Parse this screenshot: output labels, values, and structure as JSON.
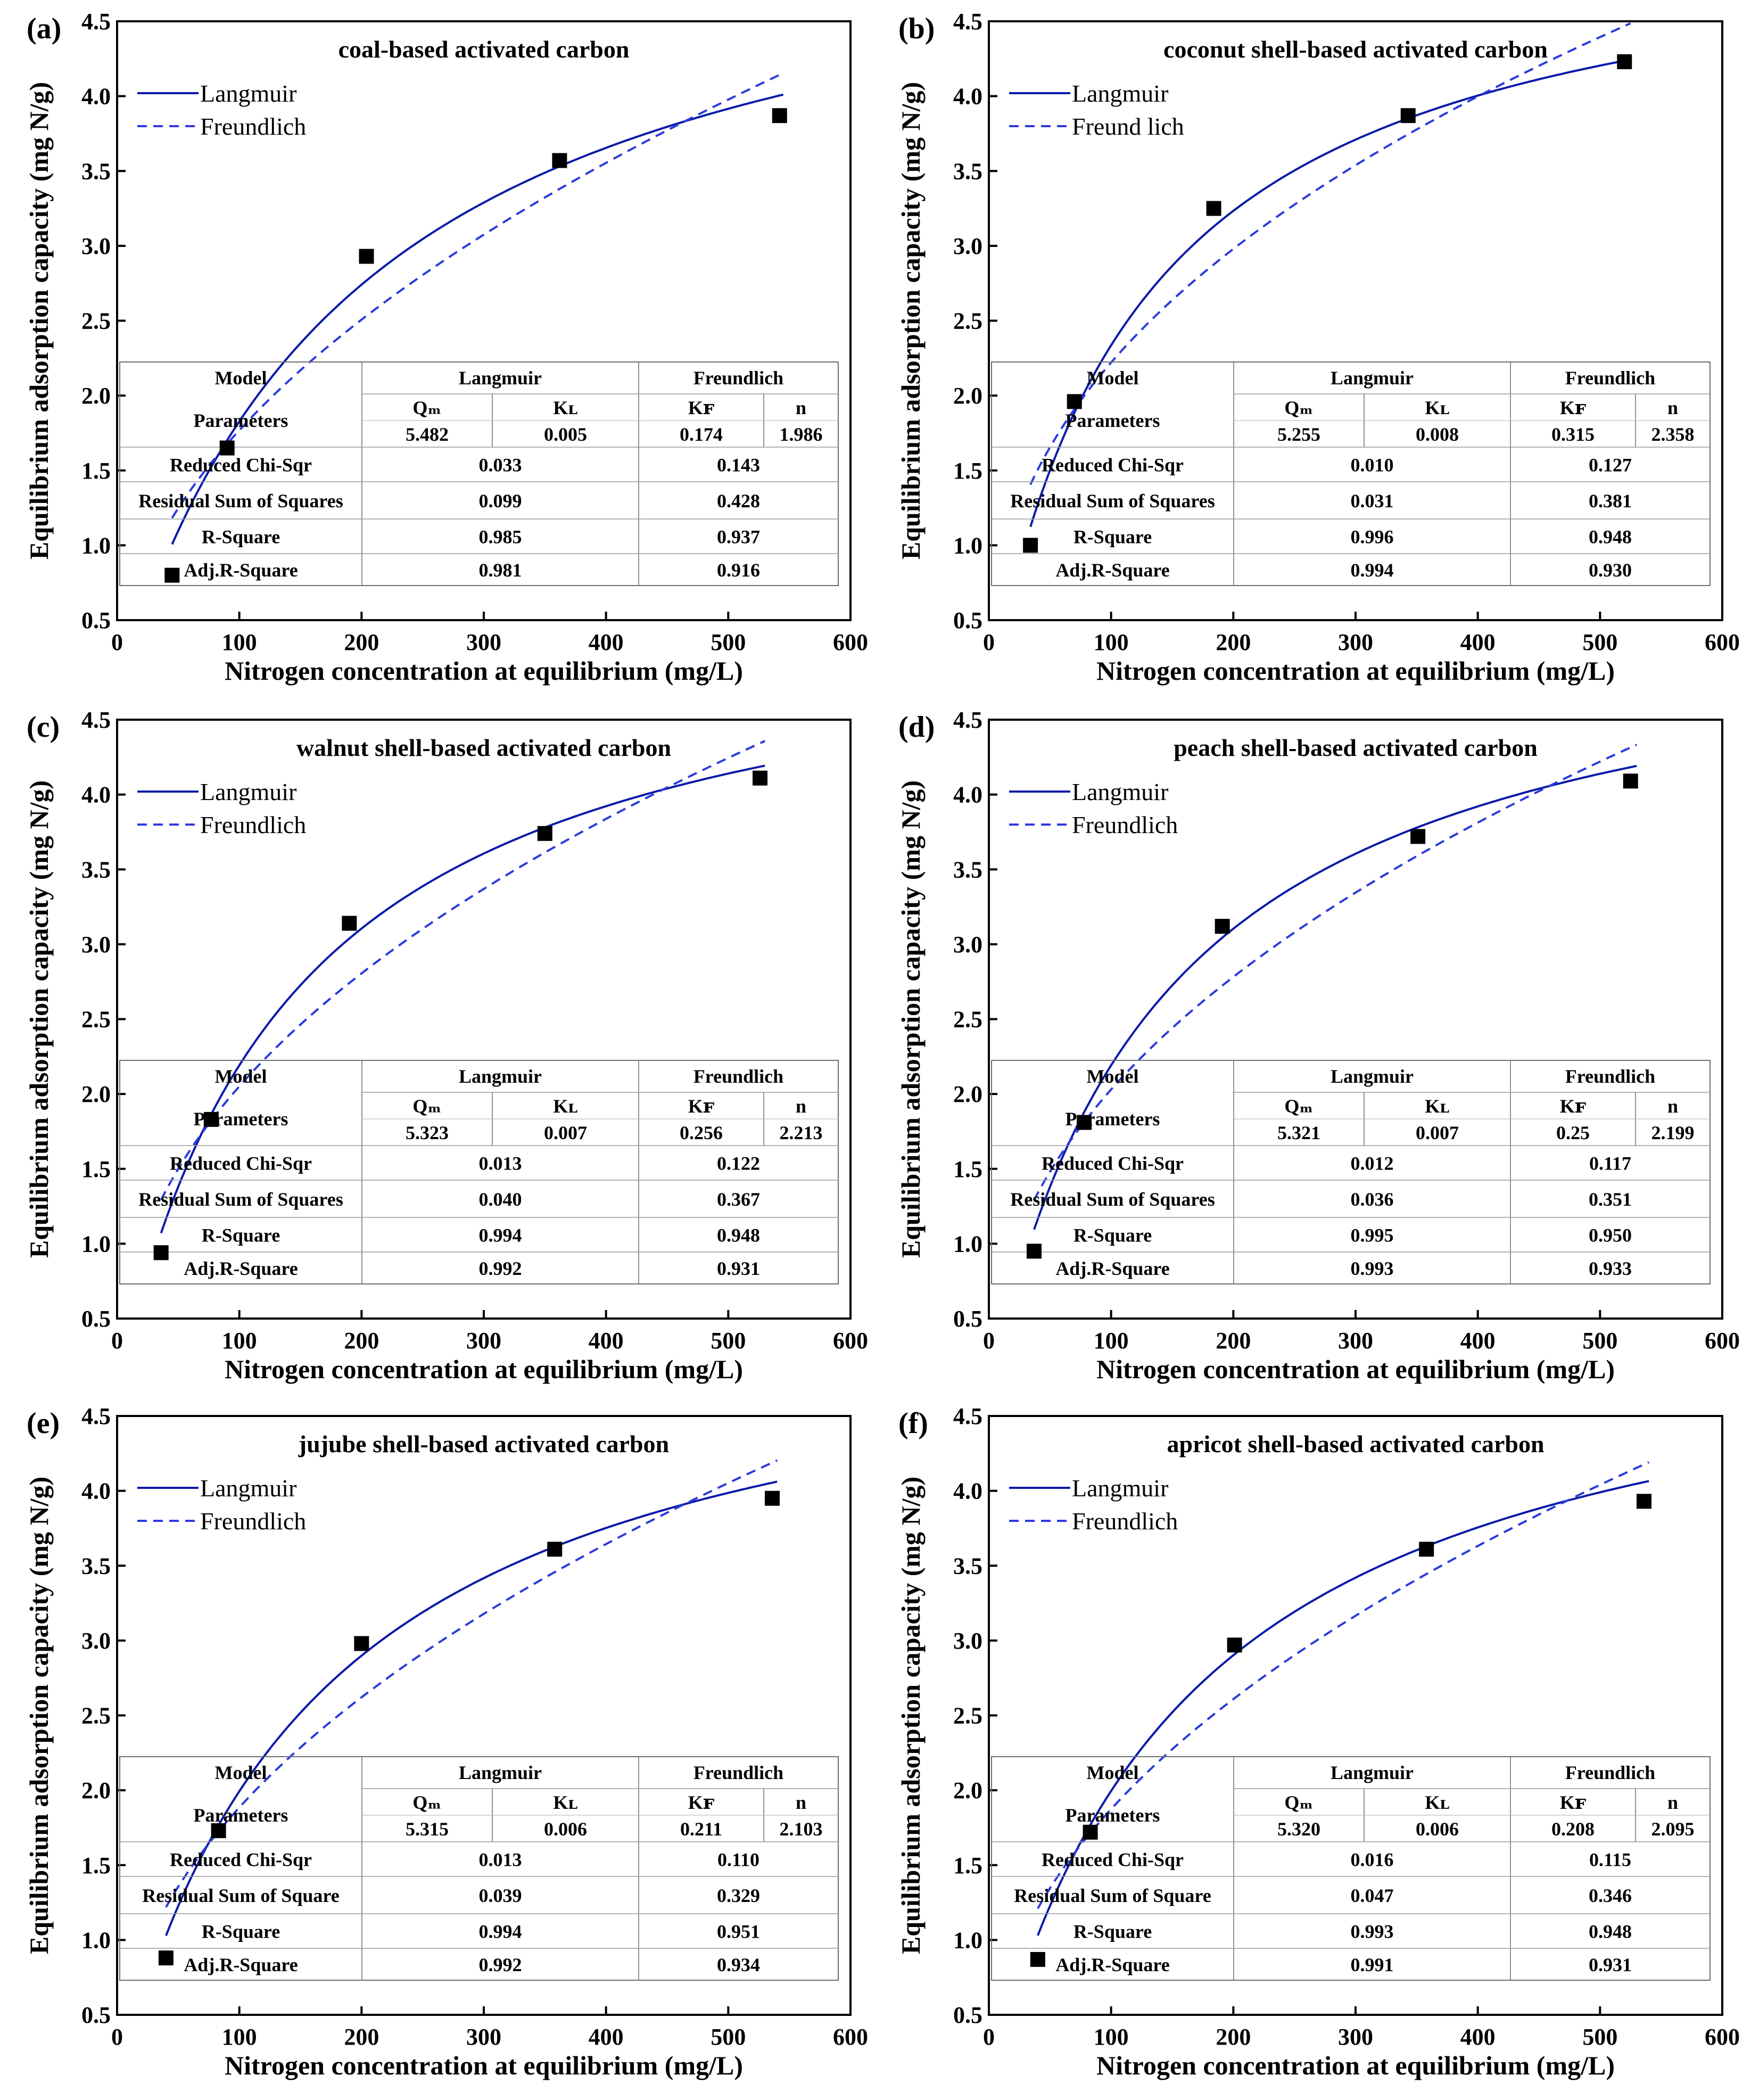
{
  "figure": {
    "xlabel": "Nitrogen concentration at equilibrium (mg/L)",
    "ylabel": "Equilibrium adsorption capacity (mg N/g)",
    "colors": {
      "langmuir": "#0a1aa8",
      "freundlich": "#2a3bdc",
      "points": "#000000",
      "axis": "#000000"
    }
  },
  "chart_data": [
    {
      "type": "scatter",
      "panel": "(a)",
      "title": "coal-based activated carbon",
      "xlim": [
        0,
        600
      ],
      "ylim": [
        0.5,
        4.5
      ],
      "xticks": [
        0,
        100,
        200,
        300,
        400,
        500,
        600
      ],
      "yticks": [
        0.5,
        1.0,
        1.5,
        2.0,
        2.5,
        3.0,
        3.5,
        4.0,
        4.5
      ],
      "legend": [
        "Langmuir",
        "Freundlich"
      ],
      "points": {
        "x": [
          45,
          90,
          204,
          362,
          542
        ],
        "y": [
          0.8,
          1.65,
          2.93,
          3.57,
          3.87
        ]
      },
      "fit_range": [
        45,
        545
      ],
      "langmuir": {
        "Qm": 5.482,
        "KL": 0.005
      },
      "freundlich": {
        "KF": 0.174,
        "n": 1.986
      },
      "table": {
        "h_model": "Model",
        "h_langmuir": "Langmuir",
        "h_freundlich": "Freundlich",
        "h_params": "Parameters",
        "h_qm": "Qₘ",
        "h_kl": "Kʟ",
        "h_kf": "Kꜰ",
        "h_n": "n",
        "qm": "5.482",
        "kl": "0.005",
        "kf": "0.174",
        "n": "1.986",
        "r1_label": "Reduced Chi-Sqr",
        "r1_l": "0.033",
        "r1_f": "0.143",
        "r2_label": "Residual Sum of Squares",
        "r2_l": "0.099",
        "r2_f": "0.428",
        "r3_label": "R-Square",
        "r3_l": "0.985",
        "r3_f": "0.937",
        "r4_label": "Adj.R-Square",
        "r4_l": "0.981",
        "r4_f": "0.916"
      }
    },
    {
      "type": "scatter",
      "panel": "(b)",
      "title": "coconut shell-based activated carbon",
      "xlim": [
        0,
        600
      ],
      "ylim": [
        0.5,
        4.5
      ],
      "xticks": [
        0,
        100,
        200,
        300,
        400,
        500,
        600
      ],
      "yticks": [
        0.5,
        1.0,
        1.5,
        2.0,
        2.5,
        3.0,
        3.5,
        4.0,
        4.5
      ],
      "legend": [
        "Langmuir",
        "Freund lich"
      ],
      "points": {
        "x": [
          34,
          70,
          184,
          343,
          520
        ],
        "y": [
          1.0,
          1.96,
          3.25,
          3.87,
          4.23
        ]
      },
      "fit_range": [
        34,
        525
      ],
      "langmuir": {
        "Qm": 5.255,
        "KL": 0.008
      },
      "freundlich": {
        "KF": 0.315,
        "n": 2.358
      },
      "table": {
        "h_model": "Model",
        "h_langmuir": "Langmuir",
        "h_freundlich": "Freundlich",
        "h_params": "Parameters",
        "h_qm": "Qₘ",
        "h_kl": "Kʟ",
        "h_kf": "Kꜰ",
        "h_n": "n",
        "qm": "5.255",
        "kl": "0.008",
        "kf": "0.315",
        "n": "2.358",
        "r1_label": "Reduced Chi-Sqr",
        "r1_l": "0.010",
        "r1_f": "0.127",
        "r2_label": "Residual Sum of Squares",
        "r2_l": "0.031",
        "r2_f": "0.381",
        "r3_label": "R-Square",
        "r3_l": "0.996",
        "r3_f": "0.948",
        "r4_label": "Adj.R-Square",
        "r4_l": "0.994",
        "r4_f": "0.930"
      }
    },
    {
      "type": "scatter",
      "panel": "(c)",
      "title": "walnut shell-based activated carbon",
      "xlim": [
        0,
        600
      ],
      "ylim": [
        0.5,
        4.5
      ],
      "xticks": [
        0,
        100,
        200,
        300,
        400,
        500,
        600
      ],
      "yticks": [
        0.5,
        1.0,
        1.5,
        2.0,
        2.5,
        3.0,
        3.5,
        4.0,
        4.5
      ],
      "legend": [
        "Langmuir",
        "Freundlich"
      ],
      "points": {
        "x": [
          36,
          77,
          190,
          350,
          526
        ],
        "y": [
          0.94,
          1.83,
          3.14,
          3.74,
          4.11
        ]
      },
      "fit_range": [
        36,
        530
      ],
      "langmuir": {
        "Qm": 5.323,
        "KL": 0.007
      },
      "freundlich": {
        "KF": 0.256,
        "n": 2.213
      },
      "table": {
        "h_model": "Model",
        "h_langmuir": "Langmuir",
        "h_freundlich": "Freundlich",
        "h_params": "Parameters",
        "h_qm": "Qₘ",
        "h_kl": "Kʟ",
        "h_kf": "Kꜰ",
        "h_n": "n",
        "qm": "5.323",
        "kl": "0.007",
        "kf": "0.256",
        "n": "2.213",
        "r1_label": "Reduced Chi-Sqr",
        "r1_l": "0.013",
        "r1_f": "0.122",
        "r2_label": "Residual Sum of Squares",
        "r2_l": "0.040",
        "r2_f": "0.367",
        "r3_label": "R-Square",
        "r3_l": "0.994",
        "r3_f": "0.948",
        "r4_label": "Adj.R-Square",
        "r4_l": "0.992",
        "r4_f": "0.931"
      }
    },
    {
      "type": "scatter",
      "panel": "(d)",
      "title": "peach shell-based activated carbon",
      "xlim": [
        0,
        600
      ],
      "ylim": [
        0.5,
        4.5
      ],
      "xticks": [
        0,
        100,
        200,
        300,
        400,
        500,
        600
      ],
      "yticks": [
        0.5,
        1.0,
        1.5,
        2.0,
        2.5,
        3.0,
        3.5,
        4.0,
        4.5
      ],
      "legend": [
        "Langmuir",
        "Freundlich"
      ],
      "points": {
        "x": [
          37,
          78,
          191,
          351,
          525
        ],
        "y": [
          0.95,
          1.81,
          3.12,
          3.72,
          4.09
        ]
      },
      "fit_range": [
        37,
        530
      ],
      "langmuir": {
        "Qm": 5.321,
        "KL": 0.007
      },
      "freundlich": {
        "KF": 0.25,
        "n": 2.199
      },
      "table": {
        "h_model": "Model",
        "h_langmuir": "Langmuir",
        "h_freundlich": "Freundlich",
        "h_params": "Parameters",
        "h_qm": "Qₘ",
        "h_kl": "Kʟ",
        "h_kf": "Kꜰ",
        "h_n": "n",
        "qm": "5.321",
        "kl": "0.007",
        "kf": "0.25",
        "n": "2.199",
        "r1_label": "Reduced Chi-Sqr",
        "r1_l": "0.012",
        "r1_f": "0.117",
        "r2_label": "Residual Sum of Squares",
        "r2_l": "0.036",
        "r2_f": "0.351",
        "r3_label": "R-Square",
        "r3_l": "0.995",
        "r3_f": "0.950",
        "r4_label": "Adj.R-Square",
        "r4_l": "0.993",
        "r4_f": "0.933"
      }
    },
    {
      "type": "scatter",
      "panel": "(e)",
      "title": "jujube shell-based activated carbon",
      "xlim": [
        0,
        600
      ],
      "ylim": [
        0.5,
        4.5
      ],
      "xticks": [
        0,
        100,
        200,
        300,
        400,
        500,
        600
      ],
      "yticks": [
        0.5,
        1.0,
        1.5,
        2.0,
        2.5,
        3.0,
        3.5,
        4.0,
        4.5
      ],
      "legend": [
        "Langmuir",
        "Freundlich"
      ],
      "points": {
        "x": [
          40,
          83,
          200,
          358,
          536
        ],
        "y": [
          0.88,
          1.73,
          2.98,
          3.61,
          3.95
        ]
      },
      "fit_range": [
        40,
        540
      ],
      "langmuir": {
        "Qm": 5.315,
        "KL": 0.006
      },
      "freundlich": {
        "KF": 0.211,
        "n": 2.103
      },
      "table": {
        "h_model": "Model",
        "h_langmuir": "Langmuir",
        "h_freundlich": "Freundlich",
        "h_params": "Parameters",
        "h_qm": "Qₘ",
        "h_kl": "Kʟ",
        "h_kf": "Kꜰ",
        "h_n": "n",
        "qm": "5.315",
        "kl": "0.006",
        "kf": "0.211",
        "n": "2.103",
        "r1_label": "Reduced Chi-Sqr",
        "r1_l": "0.013",
        "r1_f": "0.110",
        "r2_label": "Residual Sum of Square",
        "r2_l": "0.039",
        "r2_f": "0.329",
        "r3_label": "R-Square",
        "r3_l": "0.994",
        "r3_f": "0.951",
        "r4_label": "Adj.R-Square",
        "r4_l": "0.992",
        "r4_f": "0.934"
      }
    },
    {
      "type": "scatter",
      "panel": "(f)",
      "title": "apricot shell-based activated carbon",
      "xlim": [
        0,
        600
      ],
      "ylim": [
        0.5,
        4.5
      ],
      "xticks": [
        0,
        100,
        200,
        300,
        400,
        500,
        600
      ],
      "yticks": [
        0.5,
        1.0,
        1.5,
        2.0,
        2.5,
        3.0,
        3.5,
        4.0,
        4.5
      ],
      "legend": [
        "Langmuir",
        "Freundlich"
      ],
      "points": {
        "x": [
          40,
          83,
          201,
          358,
          536
        ],
        "y": [
          0.87,
          1.72,
          2.97,
          3.61,
          3.93
        ]
      },
      "fit_range": [
        40,
        540
      ],
      "langmuir": {
        "Qm": 5.32,
        "KL": 0.006
      },
      "freundlich": {
        "KF": 0.208,
        "n": 2.095
      },
      "table": {
        "h_model": "Model",
        "h_langmuir": "Langmuir",
        "h_freundlich": "Freundlich",
        "h_params": "Parameters",
        "h_qm": "Qₘ",
        "h_kl": "Kʟ",
        "h_kf": "Kꜰ",
        "h_n": "n",
        "qm": "5.320",
        "kl": "0.006",
        "kf": "0.208",
        "n": "2.095",
        "r1_label": "Reduced Chi-Sqr",
        "r1_l": "0.016",
        "r1_f": "0.115",
        "r2_label": "Residual Sum of Square",
        "r2_l": "0.047",
        "r2_f": "0.346",
        "r3_label": "R-Square",
        "r3_l": "0.993",
        "r3_f": "0.948",
        "r4_label": "Adj.R-Square",
        "r4_l": "0.991",
        "r4_f": "0.931"
      }
    }
  ]
}
